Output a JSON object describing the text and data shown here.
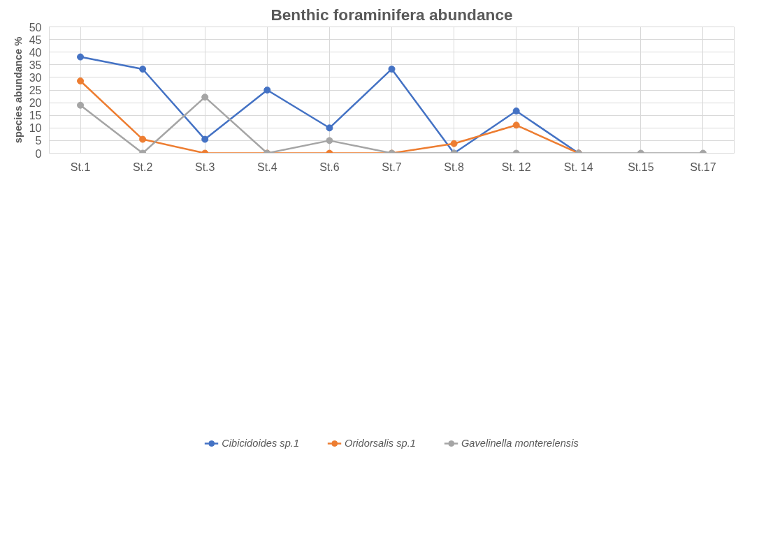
{
  "chart_data": {
    "type": "line",
    "title": "Benthic foraminifera abundance",
    "ylabel": "species abundance %",
    "categories": [
      "St.1",
      "St.2",
      "St.3",
      "St.4",
      "St.6",
      "St.7",
      "St.8",
      "St. 12",
      "St. 14",
      "St.15",
      "St.17"
    ],
    "series": [
      {
        "name": "Cibicidoides sp.1",
        "color": "#4472c4",
        "values": [
          38.1,
          33.3,
          5.5,
          25,
          10,
          33.3,
          0,
          16.7,
          0,
          null,
          null
        ]
      },
      {
        "name": "Oridorsalis sp.1",
        "color": "#ed7d31",
        "values": [
          28.6,
          5.5,
          0,
          0,
          0,
          0,
          3.8,
          11.1,
          0,
          null,
          null
        ]
      },
      {
        "name": "Gavelinella monterelensis",
        "color": "#a5a5a5",
        "values": [
          19,
          0,
          22.2,
          0,
          5,
          0,
          0,
          0,
          0,
          0,
          0
        ]
      }
    ],
    "ylim": [
      0,
      50
    ],
    "yticks": [
      0,
      5,
      10,
      15,
      20,
      25,
      30,
      35,
      40,
      45,
      50
    ],
    "grid": true,
    "legend": "bottom",
    "marker": "circle",
    "line_style": "solid"
  }
}
